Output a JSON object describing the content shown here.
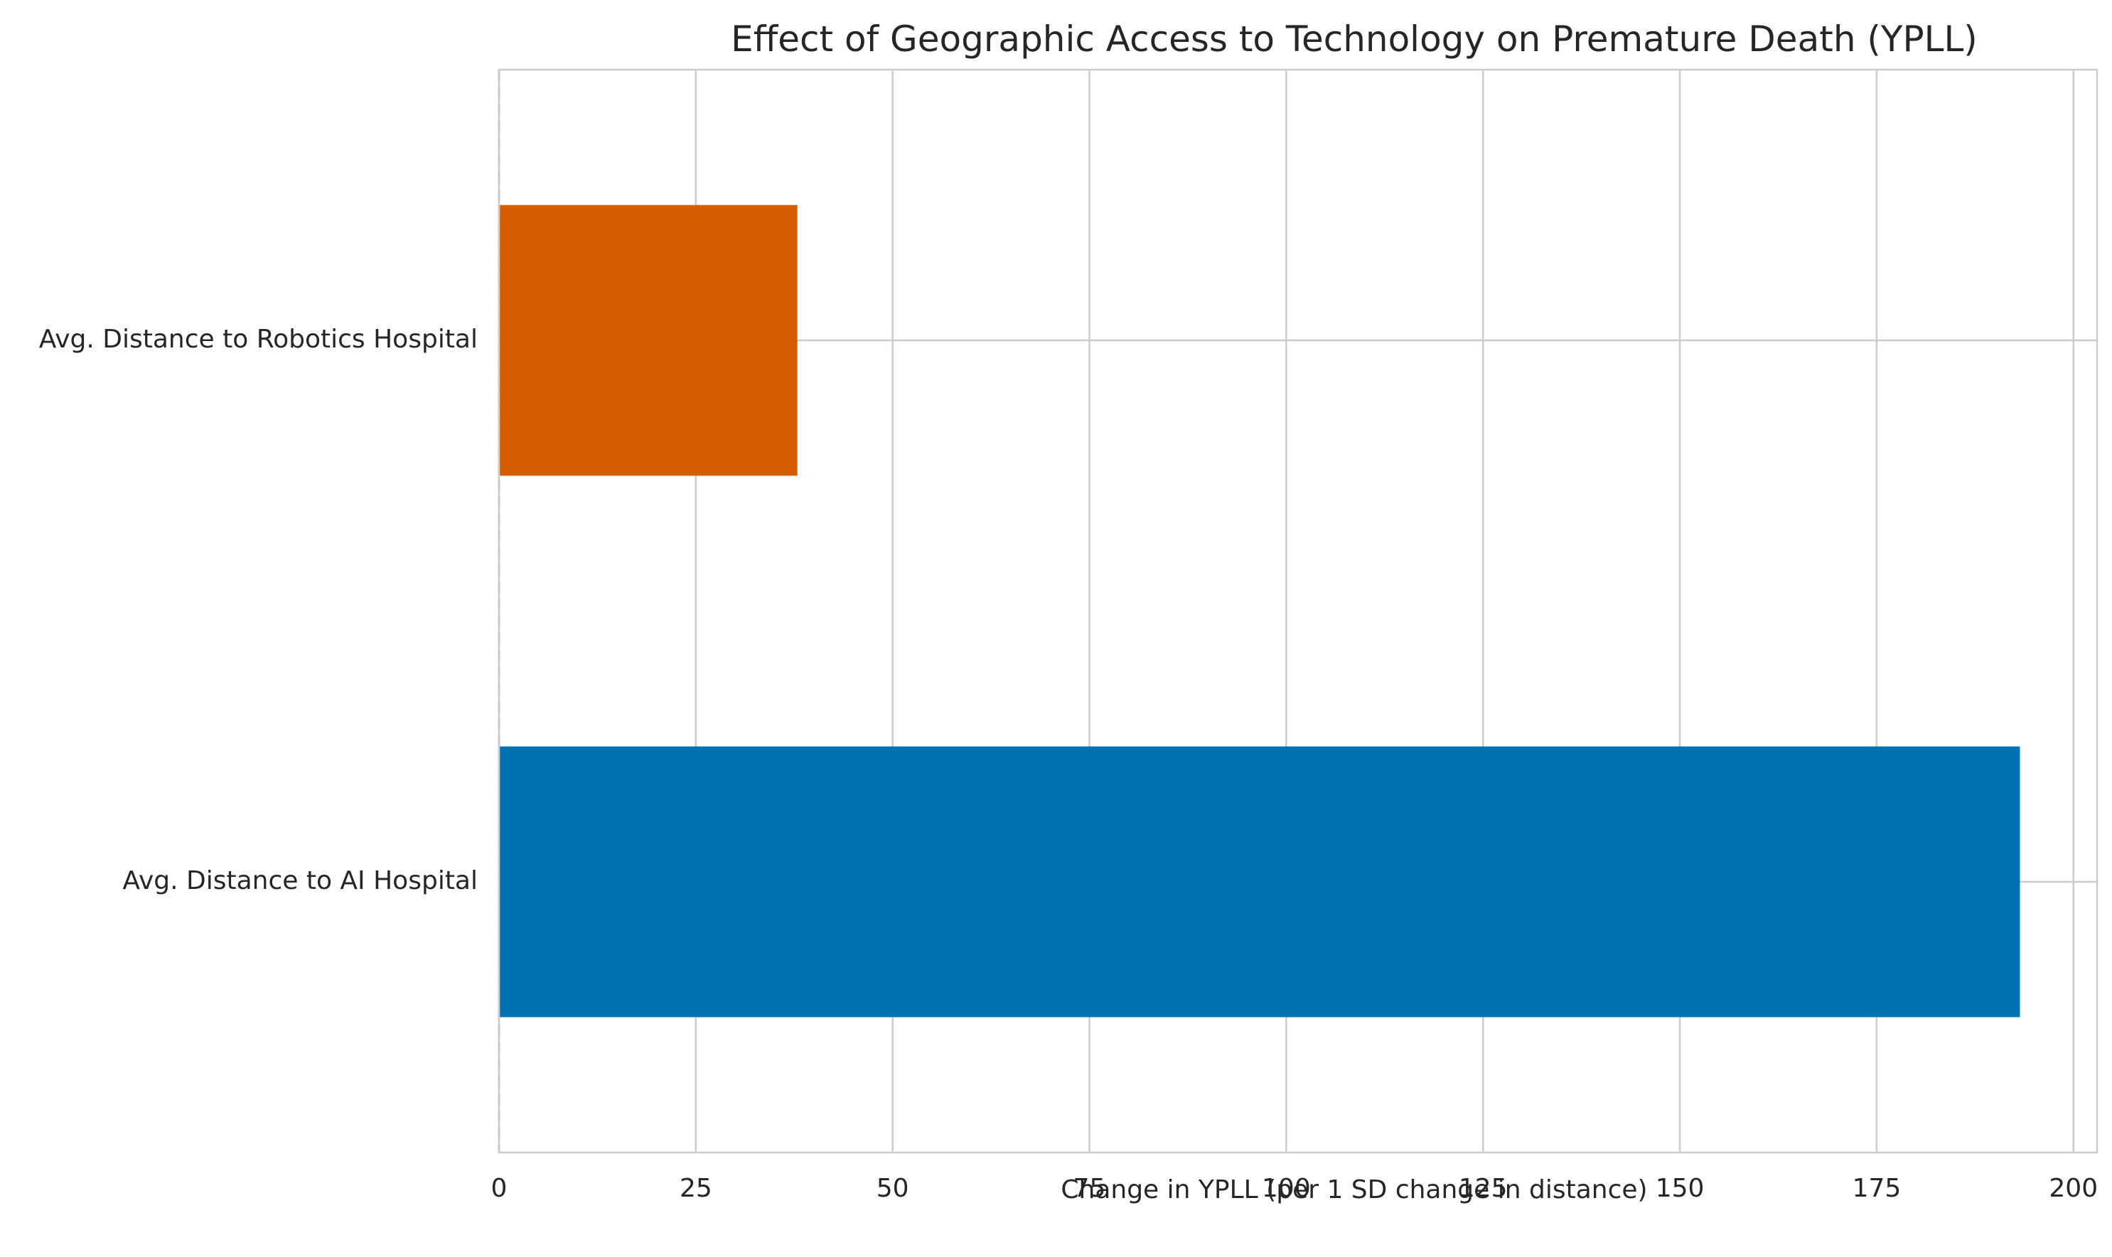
{
  "chart_data": {
    "type": "bar",
    "orientation": "horizontal",
    "title": "Effect of Geographic Access to Technology on Premature Death (YPLL)",
    "xlabel": "Change in YPLL (per 1 SD change in distance)",
    "ylabel": "",
    "categories": [
      "Avg. Distance to AI Hospital",
      "Avg. Distance to Robotics Hospital"
    ],
    "values": [
      193.2,
      37.9
    ],
    "colors": [
      "#0072b2",
      "#d55e00"
    ],
    "xlim": [
      0,
      203
    ],
    "xticks": [
      0,
      25,
      50,
      75,
      100,
      125,
      150,
      175,
      200
    ],
    "xtick_labels": [
      "0",
      "25",
      "50",
      "75",
      "100",
      "125",
      "150",
      "175",
      "200"
    ],
    "reference_line": {
      "x": 0,
      "style": "dashed",
      "color": "#808080"
    },
    "grid": true,
    "legend": "none"
  }
}
